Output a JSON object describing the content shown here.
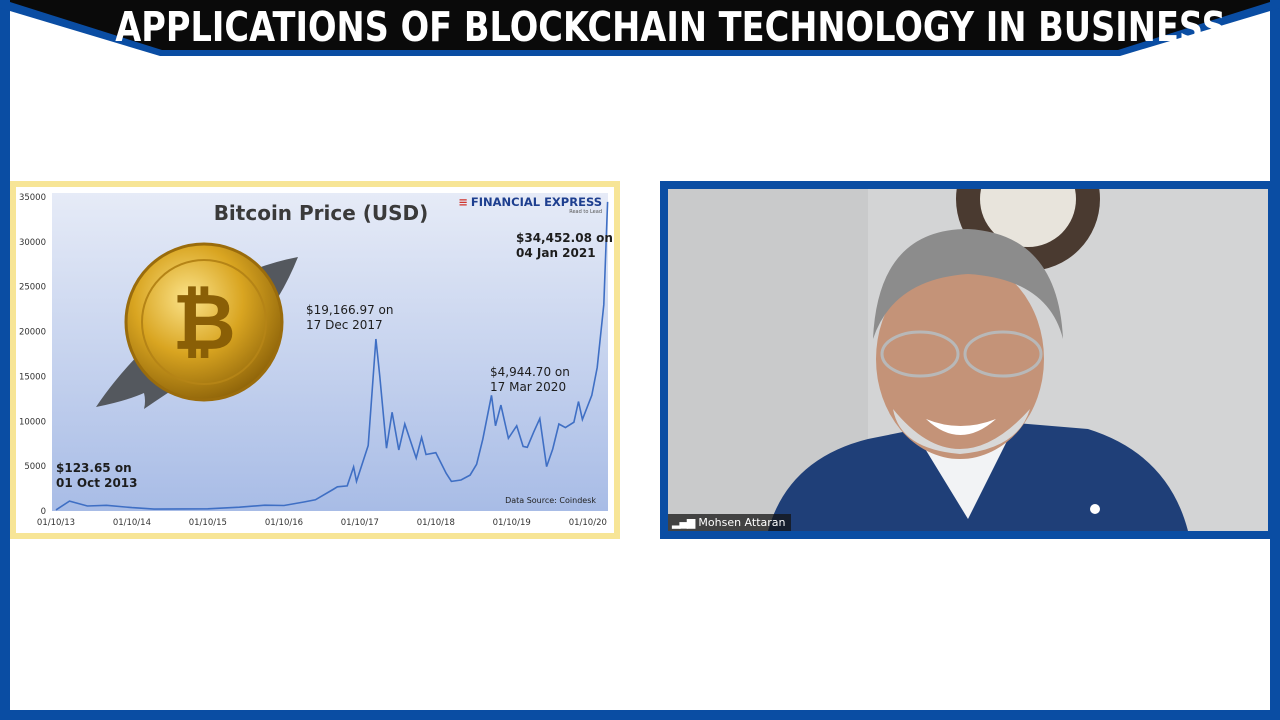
{
  "banner": {
    "title": "APPLICATIONS OF BLOCKCHAIN TECHNOLOGY IN BUSINESS"
  },
  "colors": {
    "frame": "#0a4da3",
    "banner": "#0a0a0a",
    "chart_border": "#f7e596",
    "line": "#3f6fc4",
    "coin": "#d9a521"
  },
  "chart_data": {
    "type": "line",
    "title": "Bitcoin Price (USD)",
    "brand": "FINANCIAL EXPRESS",
    "brand_tagline": "Read to Lead",
    "source": "Data Source: Coindesk",
    "ylim": [
      0,
      35000
    ],
    "yticks": [
      "0",
      "5000",
      "10000",
      "15000",
      "20000",
      "25000",
      "30000",
      "35000"
    ],
    "xticks": [
      "01/10/13",
      "01/10/14",
      "01/10/15",
      "01/10/16",
      "01/10/17",
      "01/10/18",
      "01/10/19",
      "01/10/20"
    ],
    "grid": false,
    "series": [
      {
        "x": [
          "2013-10-01",
          "2013-12-05",
          "2014-03-01",
          "2014-06-01",
          "2014-10-01",
          "2015-01-15",
          "2015-06-01",
          "2015-10-01",
          "2016-03-01",
          "2016-07-01",
          "2016-10-01",
          "2017-01-05",
          "2017-03-01",
          "2017-05-25",
          "2017-06-15",
          "2017-08-01",
          "2017-09-01",
          "2017-09-15",
          "2017-10-20",
          "2017-11-10",
          "2017-12-17",
          "2018-01-05",
          "2018-02-06",
          "2018-03-05",
          "2018-04-06",
          "2018-05-05",
          "2018-06-29",
          "2018-07-25",
          "2018-08-15",
          "2018-10-01",
          "2018-11-20",
          "2018-12-15",
          "2019-01-30",
          "2019-03-15",
          "2019-04-15",
          "2019-05-15",
          "2019-06-26",
          "2019-07-15",
          "2019-08-10",
          "2019-09-15",
          "2019-10-25",
          "2019-11-25",
          "2019-12-15",
          "2020-01-15",
          "2020-02-13",
          "2020-03-17",
          "2020-04-15",
          "2020-05-15",
          "2020-06-15",
          "2020-07-26",
          "2020-08-17",
          "2020-09-05",
          "2020-10-20",
          "2020-11-15",
          "2020-12-01",
          "2020-12-17",
          "2021-01-04"
        ],
        "y": [
          123.65,
          1100,
          560,
          640,
          380,
          210,
          230,
          240,
          420,
          650,
          610,
          1000,
          1250,
          2400,
          2700,
          2800,
          4900,
          3300,
          5800,
          7300,
          19166.97,
          15000,
          7000,
          11000,
          6800,
          9700,
          5900,
          8200,
          6300,
          6500,
          4200,
          3300,
          3450,
          4000,
          5200,
          8000,
          12900,
          9500,
          11800,
          8100,
          9500,
          7200,
          7100,
          8800,
          10300,
          4944.7,
          6900,
          9700,
          9300,
          9900,
          12200,
          10200,
          12900,
          16000,
          19500,
          23000,
          34452.08
        ]
      }
    ],
    "annotations": [
      {
        "text_line1": "$123.65 on",
        "text_line2": "01 Oct 2013",
        "bold": true
      },
      {
        "text_line1": "$19,166.97 on",
        "text_line2": "17 Dec 2017",
        "bold": false
      },
      {
        "text_line1": "$4,944.70 on",
        "text_line2": "17 Mar 2020",
        "bold": false
      },
      {
        "text_line1": "$34,452.08 on",
        "text_line2": "04 Jan 2021",
        "bold": true
      }
    ]
  },
  "video": {
    "participant_name": "Mohsen Attaran"
  }
}
